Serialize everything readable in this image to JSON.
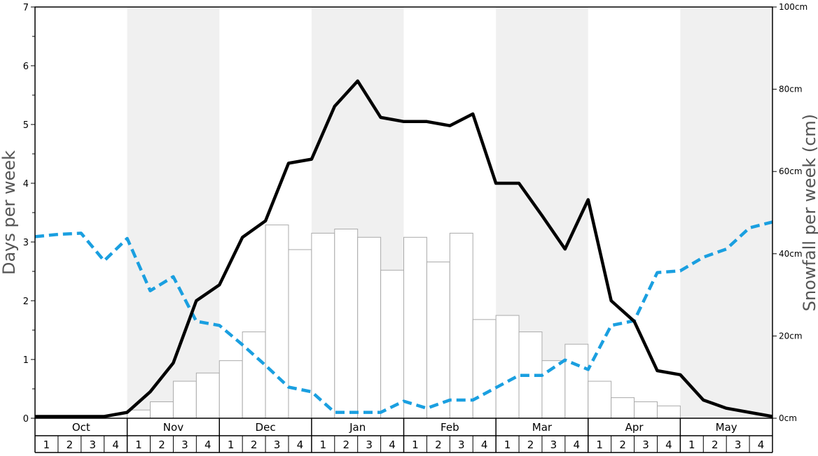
{
  "chart_data": {
    "type": "bar+line",
    "title": "",
    "ylabel_left": "Days per week",
    "ylabel_right": "Snowfall per week (cm)",
    "ylim_left": [
      0,
      7
    ],
    "ylim_right": [
      0,
      100
    ],
    "yticks_left": [
      "0",
      "1",
      "2",
      "3",
      "4",
      "5",
      "6",
      "7"
    ],
    "yticks_right": [
      "0cm",
      "20cm",
      "40cm",
      "60cm",
      "80cm",
      "100cm"
    ],
    "months": [
      "Oct",
      "Nov",
      "Dec",
      "Jan",
      "Feb",
      "Mar",
      "Apr",
      "May"
    ],
    "weeks": [
      "1",
      "2",
      "3",
      "4"
    ],
    "shaded_months": [
      "Nov",
      "Jan",
      "Mar",
      "May"
    ],
    "colors": {
      "snowfall_bars_fill": "#ffffff",
      "snowfall_bars_stroke": "#aaaaaa",
      "solid_line": "#000000",
      "dashed_line": "#1a9fe0",
      "shade": "#f0f0f0"
    },
    "series": [
      {
        "style": "bars",
        "axis": "right",
        "values": [
          0,
          0,
          0,
          0,
          2,
          4,
          9,
          11,
          14,
          21,
          47,
          41,
          45,
          46,
          44,
          36,
          44,
          38,
          45,
          24,
          25,
          21,
          14,
          18,
          9,
          5,
          4,
          3,
          0,
          0,
          0,
          0
        ]
      },
      {
        "style": "solid-line",
        "axis": "left",
        "values": [
          0.03,
          0.03,
          0.03,
          0.03,
          0.1,
          0.45,
          0.94,
          2.0,
          2.27,
          3.08,
          3.36,
          4.34,
          4.41,
          5.31,
          5.74,
          5.12,
          5.05,
          5.05,
          4.98,
          5.18,
          4.0,
          4.0,
          3.45,
          2.88,
          3.72,
          2.0,
          1.65,
          0.81,
          0.74,
          0.31,
          0.17,
          0.1
        ]
      },
      {
        "style": "dashed-line",
        "axis": "left",
        "values": [
          3.09,
          3.13,
          3.15,
          2.68,
          3.06,
          2.17,
          2.41,
          1.65,
          1.58,
          1.25,
          0.9,
          0.53,
          0.45,
          0.1,
          0.1,
          0.1,
          0.29,
          0.17,
          0.31,
          0.31,
          0.52,
          0.73,
          0.73,
          0.99,
          0.83,
          1.58,
          1.66,
          2.48,
          2.51,
          2.74,
          2.88,
          3.24
        ]
      }
    ],
    "end_point": {
      "solid": 0.03,
      "dashed": 3.34
    }
  }
}
